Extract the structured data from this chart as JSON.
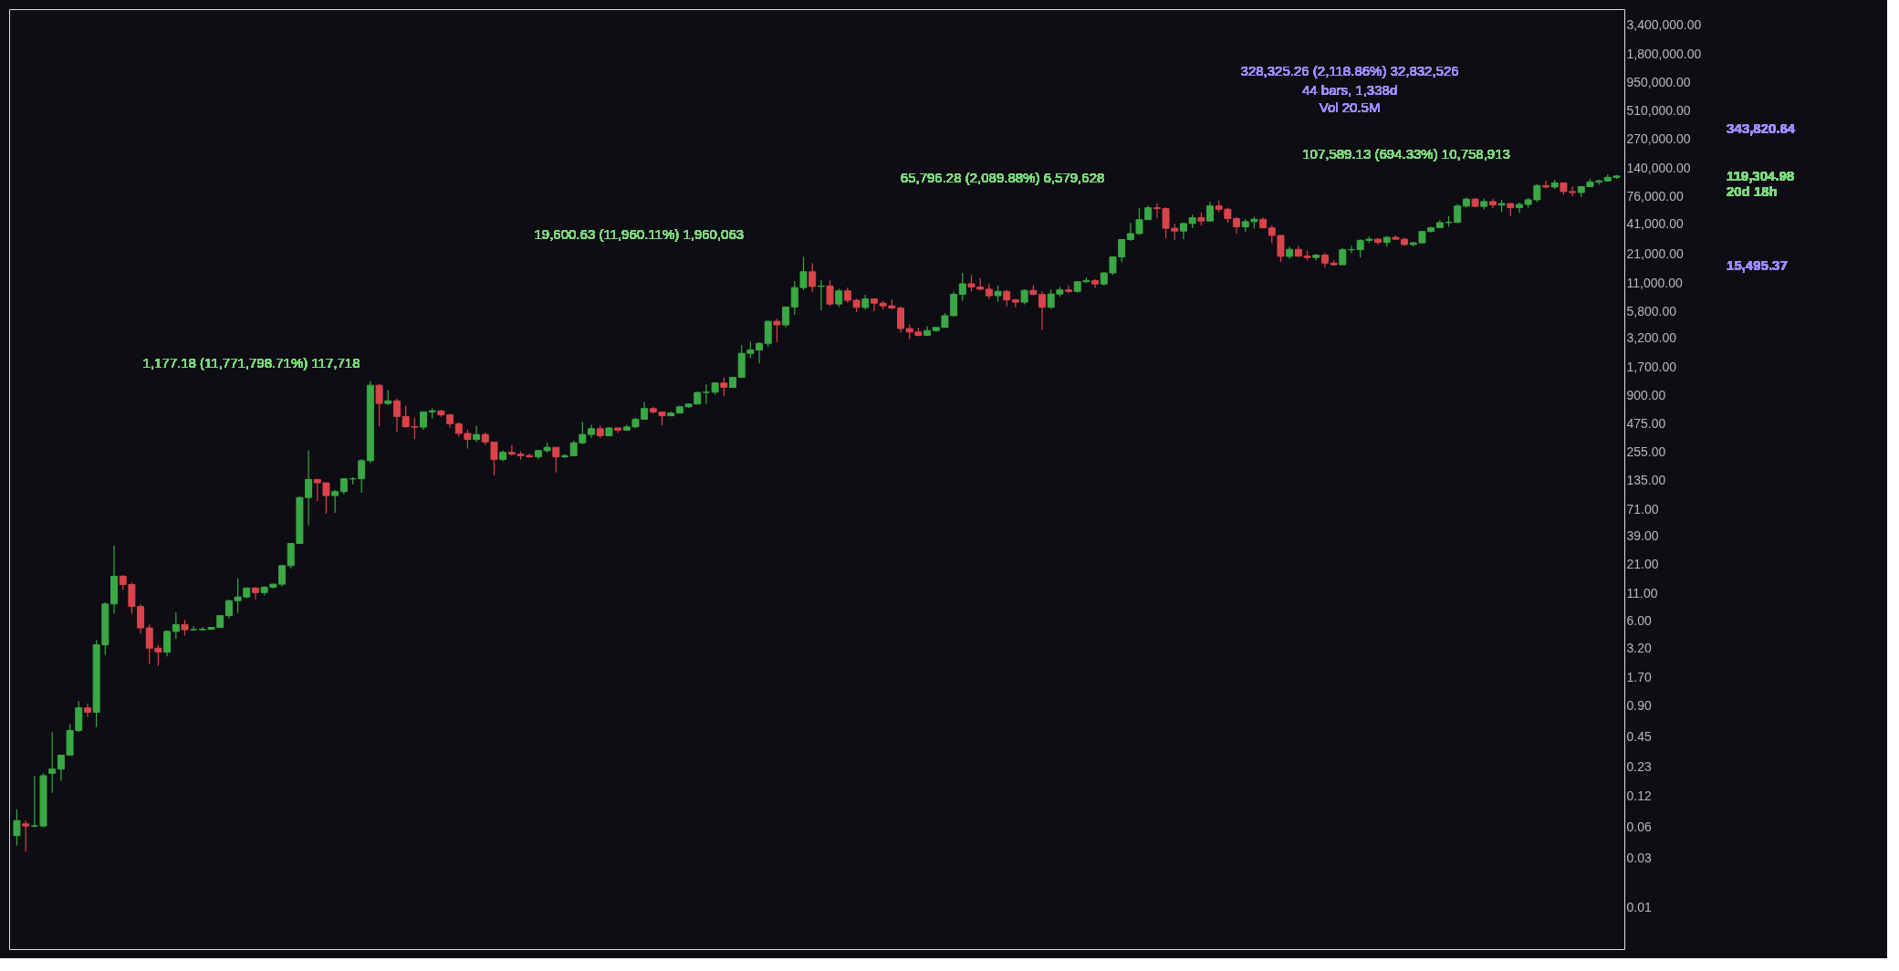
{
  "chart_data": {
    "type": "candlestick",
    "categories": [
      null,
      null,
      null,
      null,
      null,
      null,
      null,
      null,
      null,
      null,
      null,
      null,
      null,
      null,
      null,
      null,
      null,
      null,
      null,
      null,
      null,
      null,
      null,
      null,
      null,
      null,
      null,
      null,
      null,
      null,
      null,
      null,
      null,
      null,
      null,
      null,
      null,
      null,
      null,
      null,
      null,
      null,
      null,
      null,
      null,
      null,
      null,
      null,
      null,
      null,
      null,
      null,
      null,
      null,
      null,
      null,
      null,
      null,
      null,
      null,
      null,
      null,
      null,
      null,
      null,
      null,
      null,
      null,
      null,
      null,
      null,
      null,
      null,
      null,
      null,
      null,
      null,
      null,
      null,
      null,
      null,
      null,
      null,
      null,
      null,
      null,
      null,
      null,
      null,
      null,
      null,
      null,
      null,
      null,
      null,
      null,
      null,
      null,
      null,
      null,
      null,
      null,
      null,
      null,
      null,
      null,
      null,
      null,
      null,
      null,
      null,
      null,
      null,
      null,
      null,
      null,
      null,
      null,
      null,
      null,
      null,
      null,
      null,
      null,
      null,
      null,
      null,
      null,
      null,
      null,
      null,
      null,
      null,
      null,
      null,
      null,
      null,
      null,
      null,
      null,
      null,
      null,
      null,
      null,
      null,
      null,
      null,
      null,
      null,
      null,
      null,
      null,
      null,
      null,
      null,
      null,
      null,
      null,
      null,
      null,
      null,
      null,
      null,
      null,
      null,
      null,
      null,
      null,
      null,
      null,
      null,
      null,
      null,
      null,
      null,
      null,
      null,
      null,
      null,
      null,
      null,
      null
    ],
    "ohlc": [
      [
        0.05,
        0.09,
        0.04,
        0.07
      ],
      [
        0.065,
        0.07,
        0.035,
        0.062
      ],
      [
        0.062,
        0.19,
        0.06,
        0.062
      ],
      [
        0.062,
        0.2,
        0.06,
        0.19
      ],
      [
        0.2,
        0.5,
        0.13,
        0.22
      ],
      [
        0.22,
        0.3,
        0.17,
        0.3
      ],
      [
        0.3,
        0.6,
        0.3,
        0.52
      ],
      [
        0.52,
        1.0,
        0.5,
        0.86
      ],
      [
        0.86,
        0.95,
        0.7,
        0.78
      ],
      [
        0.78,
        3.9,
        0.56,
        3.5
      ],
      [
        3.5,
        9.0,
        2.8,
        8.7
      ],
      [
        8.7,
        31.9,
        7.0,
        16.1
      ],
      [
        16.1,
        16.5,
        12.0,
        13.4
      ],
      [
        13.4,
        14,
        7.0,
        8.2
      ],
      [
        8.2,
        8.6,
        4.5,
        5.1
      ],
      [
        5.1,
        5.5,
        2.3,
        3.25
      ],
      [
        3.25,
        3.5,
        2.2,
        2.97
      ],
      [
        2.97,
        4.8,
        2.7,
        4.72
      ],
      [
        4.72,
        7.2,
        4.0,
        5.5
      ],
      [
        5.5,
        6.1,
        4.3,
        4.9
      ],
      [
        4.9,
        5.3,
        4.8,
        4.9
      ],
      [
        4.9,
        5.2,
        4.8,
        4.95
      ],
      [
        4.95,
        5.2,
        4.9,
        5.15
      ],
      [
        5.15,
        6.7,
        5.1,
        6.7
      ],
      [
        6.7,
        9.6,
        6.3,
        9.35
      ],
      [
        9.35,
        15.4,
        7.1,
        10.15
      ],
      [
        10.15,
        12.5,
        9.9,
        12.4
      ],
      [
        12.4,
        12.6,
        9.6,
        11.2
      ],
      [
        11.2,
        12.9,
        10.5,
        12.6
      ],
      [
        12.6,
        13.6,
        12.3,
        13.5
      ],
      [
        13.5,
        20.6,
        12.8,
        20.4
      ],
      [
        20.4,
        33.4,
        19.1,
        33.4
      ],
      [
        33.4,
        95,
        33.3,
        93
      ],
      [
        93,
        266,
        50,
        139
      ],
      [
        139,
        140,
        86,
        129
      ],
      [
        129,
        129,
        65,
        97
      ],
      [
        97,
        110,
        66,
        106
      ],
      [
        106,
        142,
        100,
        141
      ],
      [
        141,
        146,
        124,
        141
      ],
      [
        141,
        220,
        103,
        211
      ],
      [
        211,
        1242,
        200,
        1130
      ],
      [
        1130,
        1163,
        455,
        754
      ],
      [
        754,
        1020,
        730,
        800
      ],
      [
        800,
        840,
        400,
        565
      ],
      [
        565,
        720,
        440,
        450
      ],
      [
        450,
        550,
        340,
        445
      ],
      [
        445,
        630,
        420,
        625
      ],
      [
        625,
        680,
        540,
        640
      ],
      [
        640,
        650,
        560,
        585
      ],
      [
        585,
        600,
        440,
        480
      ],
      [
        480,
        495,
        360,
        387
      ],
      [
        387,
        420,
        276,
        338
      ],
      [
        338,
        460,
        320,
        378
      ],
      [
        378,
        395,
        300,
        320
      ],
      [
        320,
        320,
        152,
        217
      ],
      [
        217,
        265,
        208,
        254
      ],
      [
        254,
        300,
        235,
        244
      ],
      [
        244,
        260,
        215,
        236
      ],
      [
        236,
        247,
        225,
        230
      ],
      [
        230,
        268,
        217,
        264
      ],
      [
        264,
        315,
        253,
        284
      ],
      [
        284,
        285,
        162,
        230
      ],
      [
        230,
        245,
        225,
        236
      ],
      [
        236,
        330,
        235,
        314
      ],
      [
        314,
        500,
        305,
        378
      ],
      [
        378,
        470,
        350,
        430
      ],
      [
        430,
        460,
        350,
        368
      ],
      [
        368,
        445,
        367,
        437
      ],
      [
        437,
        440,
        390,
        416
      ],
      [
        416,
        470,
        414,
        448
      ],
      [
        448,
        550,
        435,
        531
      ],
      [
        531,
        780,
        525,
        673
      ],
      [
        673,
        700,
        600,
        624
      ],
      [
        624,
        625,
        465,
        573
      ],
      [
        573,
        630,
        570,
        609
      ],
      [
        609,
        720,
        605,
        700
      ],
      [
        700,
        750,
        685,
        745
      ],
      [
        745,
        980,
        740,
        964
      ],
      [
        964,
        1150,
        750,
        970
      ],
      [
        970,
        1200,
        915,
        1190
      ],
      [
        1190,
        1350,
        890,
        1080
      ],
      [
        1080,
        1350,
        1060,
        1350
      ],
      [
        1350,
        2760,
        1340,
        2300
      ],
      [
        2300,
        3000,
        2070,
        2480
      ],
      [
        2480,
        2950,
        1840,
        2875
      ],
      [
        2875,
        4770,
        2660,
        4700
      ],
      [
        4700,
        4970,
        2970,
        4340
      ],
      [
        4340,
        6470,
        4110,
        6460
      ],
      [
        6460,
        11500,
        5400,
        9950
      ],
      [
        9950,
        19700,
        9380,
        14150
      ],
      [
        14150,
        17200,
        9000,
        10200
      ],
      [
        10200,
        11800,
        6000,
        10300
      ],
      [
        10300,
        11700,
        6600,
        6900
      ],
      [
        6900,
        9750,
        6430,
        9250
      ],
      [
        9250,
        10000,
        7050,
        7500
      ],
      [
        7500,
        7780,
        5770,
        6400
      ],
      [
        6400,
        8500,
        6090,
        7730
      ],
      [
        7730,
        7760,
        5880,
        7030
      ],
      [
        7030,
        7410,
        6100,
        6630
      ],
      [
        6630,
        7680,
        6200,
        6300
      ],
      [
        6300,
        6580,
        3650,
        4000
      ],
      [
        4000,
        4400,
        3150,
        3700
      ],
      [
        3700,
        4080,
        3350,
        3440
      ],
      [
        3440,
        4210,
        3390,
        3820
      ],
      [
        3820,
        4130,
        3730,
        4100
      ],
      [
        4100,
        5630,
        4090,
        5320
      ],
      [
        5320,
        9070,
        5300,
        8570
      ],
      [
        8570,
        13800,
        7450,
        10820
      ],
      [
        10820,
        13150,
        9100,
        10080
      ],
      [
        10080,
        12330,
        9400,
        9600
      ],
      [
        9600,
        10900,
        7750,
        8300
      ],
      [
        8300,
        10370,
        7300,
        9150
      ],
      [
        9150,
        9500,
        6530,
        7560
      ],
      [
        7560,
        7750,
        6430,
        7200
      ],
      [
        7200,
        9600,
        6850,
        9350
      ],
      [
        9350,
        10500,
        8450,
        8540
      ],
      [
        8540,
        9200,
        3850,
        6420
      ],
      [
        6420,
        9470,
        6150,
        8630
      ],
      [
        8630,
        10080,
        8110,
        9450
      ],
      [
        9450,
        10380,
        8830,
        9140
      ],
      [
        9140,
        11450,
        8900,
        11350
      ],
      [
        11350,
        12480,
        10990,
        11650
      ],
      [
        11650,
        12070,
        9880,
        10780
      ],
      [
        10780,
        14100,
        10380,
        13800
      ],
      [
        13800,
        19860,
        13200,
        19700
      ],
      [
        19700,
        29300,
        17570,
        28990
      ],
      [
        28990,
        41950,
        28130,
        33110
      ],
      [
        33110,
        58350,
        32300,
        45140
      ],
      [
        45140,
        61800,
        45000,
        58800
      ],
      [
        58800,
        64900,
        47000,
        57700
      ],
      [
        57700,
        59500,
        30000,
        37300
      ],
      [
        37300,
        41330,
        28800,
        35040
      ],
      [
        35040,
        42300,
        29300,
        41460
      ],
      [
        41460,
        50500,
        37300,
        47100
      ],
      [
        47100,
        52950,
        39600,
        43800
      ],
      [
        43800,
        67000,
        43300,
        61300
      ],
      [
        61300,
        69000,
        53250,
        56950
      ],
      [
        56950,
        59100,
        42000,
        46200
      ],
      [
        46200,
        47990,
        32900,
        38480
      ],
      [
        38480,
        45800,
        34300,
        43190
      ],
      [
        43190,
        48200,
        37150,
        45510
      ],
      [
        45510,
        47450,
        37600,
        37640
      ],
      [
        37640,
        40000,
        26700,
        31790
      ],
      [
        31790,
        31980,
        17600,
        19940
      ],
      [
        19940,
        24680,
        18780,
        23300
      ],
      [
        23300,
        25200,
        19600,
        20050
      ],
      [
        20050,
        22800,
        18150,
        19430
      ],
      [
        19430,
        21100,
        18200,
        20490
      ],
      [
        20490,
        21470,
        15480,
        17170
      ],
      [
        17170,
        18400,
        16300,
        16540
      ],
      [
        16540,
        23960,
        16500,
        23130
      ],
      [
        23130,
        25250,
        21350,
        23150
      ],
      [
        23150,
        29200,
        19550,
        28480
      ],
      [
        28480,
        31000,
        26900,
        29230
      ],
      [
        29230,
        29820,
        25800,
        27220
      ],
      [
        27220,
        31400,
        24800,
        30480
      ],
      [
        30480,
        31800,
        28860,
        29230
      ],
      [
        29230,
        30200,
        25200,
        25940
      ],
      [
        25940,
        27480,
        24900,
        26970
      ],
      [
        26970,
        35200,
        26550,
        34650
      ],
      [
        34650,
        38400,
        34100,
        37720
      ],
      [
        37720,
        44700,
        37600,
        42280
      ],
      [
        42280,
        48970,
        38550,
        42580
      ],
      [
        42580,
        63970,
        41880,
        61130
      ],
      [
        61130,
        73800,
        59000,
        71330
      ],
      [
        71330,
        72800,
        59600,
        60640
      ],
      [
        60640,
        71980,
        56550,
        67490
      ],
      [
        67490,
        71950,
        58400,
        62680
      ],
      [
        62680,
        70000,
        53500,
        64620
      ],
      [
        64620,
        65100,
        49000,
        58970
      ],
      [
        58970,
        66500,
        52600,
        63330
      ],
      [
        63330,
        73600,
        58900,
        70290
      ],
      [
        70290,
        99800,
        66800,
        96400
      ],
      [
        96400,
        108300,
        90500,
        93430
      ],
      [
        93430,
        109600,
        89200,
        102430
      ],
      [
        102430,
        102500,
        78200,
        84350
      ],
      [
        84350,
        95000,
        76600,
        82550
      ],
      [
        82550,
        95800,
        74400,
        94200
      ],
      [
        94200,
        112000,
        93400,
        104600
      ],
      [
        104600,
        110500,
        98200,
        107100
      ],
      [
        107100,
        123200,
        105100,
        115760
      ],
      [
        115760,
        122300,
        112000,
        119304.98
      ]
    ],
    "colors": [
      "#3aa845",
      "#d9434b",
      "#3aa845",
      "#3aa845",
      "#3aa845",
      "#3aa845",
      "#3aa845",
      "#3aa845",
      "#d9434b",
      "#3aa845",
      "#3aa845",
      "#3aa845",
      "#d9434b",
      "#d9434b",
      "#d9434b",
      "#d9434b",
      "#d9434b",
      "#3aa845",
      "#3aa845",
      "#d9434b",
      "#3aa845",
      "#3aa845",
      "#3aa845",
      "#3aa845",
      "#3aa845",
      "#3aa845",
      "#3aa845",
      "#d9434b",
      "#3aa845",
      "#3aa845",
      "#3aa845",
      "#3aa845",
      "#3aa845",
      "#3aa845",
      "#d9434b",
      "#d9434b",
      "#3aa845",
      "#3aa845",
      "#3aa845",
      "#3aa845",
      "#3aa845",
      "#d9434b",
      "#3aa845",
      "#d9434b",
      "#d9434b",
      "#d9434b",
      "#3aa845",
      "#3aa845",
      "#d9434b",
      "#d9434b",
      "#d9434b",
      "#d9434b",
      "#3aa845",
      "#d9434b",
      "#d9434b",
      "#3aa845",
      "#d9434b",
      "#d9434b",
      "#d9434b",
      "#3aa845",
      "#3aa845",
      "#d9434b",
      "#3aa845",
      "#3aa845",
      "#3aa845",
      "#3aa845",
      "#d9434b",
      "#3aa845",
      "#d9434b",
      "#3aa845",
      "#3aa845",
      "#3aa845",
      "#d9434b",
      "#d9434b",
      "#3aa845",
      "#3aa845",
      "#3aa845",
      "#3aa845",
      "#3aa845",
      "#3aa845",
      "#d9434b",
      "#3aa845",
      "#3aa845",
      "#3aa845",
      "#3aa845",
      "#3aa845",
      "#d9434b",
      "#3aa845",
      "#3aa845",
      "#3aa845",
      "#d9434b",
      "#3aa845",
      "#d9434b",
      "#3aa845",
      "#d9434b",
      "#d9434b",
      "#3aa845",
      "#d9434b",
      "#d9434b",
      "#d9434b",
      "#d9434b",
      "#d9434b",
      "#d9434b",
      "#3aa845",
      "#3aa845",
      "#3aa845",
      "#3aa845",
      "#3aa845",
      "#d9434b",
      "#d9434b",
      "#d9434b",
      "#3aa845",
      "#d9434b",
      "#d9434b",
      "#3aa845",
      "#d9434b",
      "#d9434b",
      "#3aa845",
      "#3aa845",
      "#d9434b",
      "#3aa845",
      "#3aa845",
      "#d9434b",
      "#3aa845",
      "#3aa845",
      "#3aa845",
      "#3aa845",
      "#3aa845",
      "#3aa845",
      "#d9434b",
      "#d9434b",
      "#d9434b",
      "#3aa845",
      "#3aa845",
      "#d9434b",
      "#3aa845",
      "#d9434b",
      "#d9434b",
      "#d9434b",
      "#3aa845",
      "#3aa845",
      "#d9434b",
      "#d9434b",
      "#d9434b",
      "#3aa845",
      "#d9434b",
      "#d9434b",
      "#3aa845",
      "#d9434b",
      "#d9434b",
      "#3aa845",
      "#3aa845",
      "#3aa845",
      "#3aa845",
      "#d9434b",
      "#3aa845",
      "#d9434b",
      "#d9434b",
      "#3aa845",
      "#3aa845",
      "#3aa845",
      "#3aa845",
      "#3aa845",
      "#3aa845",
      "#3aa845",
      "#d9434b",
      "#3aa845",
      "#d9434b",
      "#3aa845",
      "#d9434b",
      "#3aa845",
      "#3aa845",
      "#3aa845",
      "#d9434b",
      "#3aa845",
      "#d9434b",
      "#d9434b",
      "#3aa845",
      "#3aa845",
      "#3aa845",
      "#3aa845",
      "#3aa845"
    ],
    "log": true,
    "ylim": [
      0.004,
      4900000
    ],
    "yticks": [
      {
        "value": 0.01,
        "label": "0.01"
      },
      {
        "value": 0.03,
        "label": "0.03"
      },
      {
        "value": 0.06,
        "label": "0.06"
      },
      {
        "value": 0.12,
        "label": "0.12"
      },
      {
        "value": 0.23,
        "label": "0.23"
      },
      {
        "value": 0.45,
        "label": "0.45"
      },
      {
        "value": 0.9,
        "label": "0.90"
      },
      {
        "value": 1.7,
        "label": "1.70"
      },
      {
        "value": 3.2,
        "label": "3.20"
      },
      {
        "value": 6,
        "label": "6.00"
      },
      {
        "value": 11,
        "label": "11.00"
      },
      {
        "value": 21,
        "label": "21.00"
      },
      {
        "value": 39,
        "label": "39.00"
      },
      {
        "value": 71,
        "label": "71.00"
      },
      {
        "value": 135,
        "label": "135.00"
      },
      {
        "value": 255,
        "label": "255.00"
      },
      {
        "value": 475,
        "label": "475.00"
      },
      {
        "value": 900,
        "label": "900.00"
      },
      {
        "value": 1700,
        "label": "1,700.00"
      },
      {
        "value": 3200,
        "label": "3,200.00"
      },
      {
        "value": 5800,
        "label": "5,800.00"
      },
      {
        "value": 11000,
        "label": "11,000.00"
      },
      {
        "value": 21000,
        "label": "21,000.00"
      },
      {
        "value": 41000,
        "label": "41,000.00"
      },
      {
        "value": 76000,
        "label": "76,000.00"
      },
      {
        "value": 140000,
        "label": "140,000.00"
      },
      {
        "value": 270000,
        "label": "270,000.00"
      },
      {
        "value": 510000,
        "label": "510,000.00"
      },
      {
        "value": 950000,
        "label": "950,000.00"
      },
      {
        "value": 1800000,
        "label": "1,800,000.00"
      },
      {
        "value": 3400000,
        "label": "3,400,000.00"
      }
    ],
    "tick_labels": "y",
    "grid": false,
    "annotations": [
      "1,177.18 (11,771,798.71%) 117,718",
      "19,600.63 (11,960.11%) 1,960,063",
      "65,796.28 (2,089.88%) 6,579,628",
      "107,589.13 (694.33%) 10,758,913",
      "328,325.26 (2,118.86%) 32,832,526",
      "44 bars, 1,338d",
      "Vol 20.5M",
      "343,820.64",
      "119,304.98",
      "20d 18h",
      "15,495.37"
    ]
  }
}
